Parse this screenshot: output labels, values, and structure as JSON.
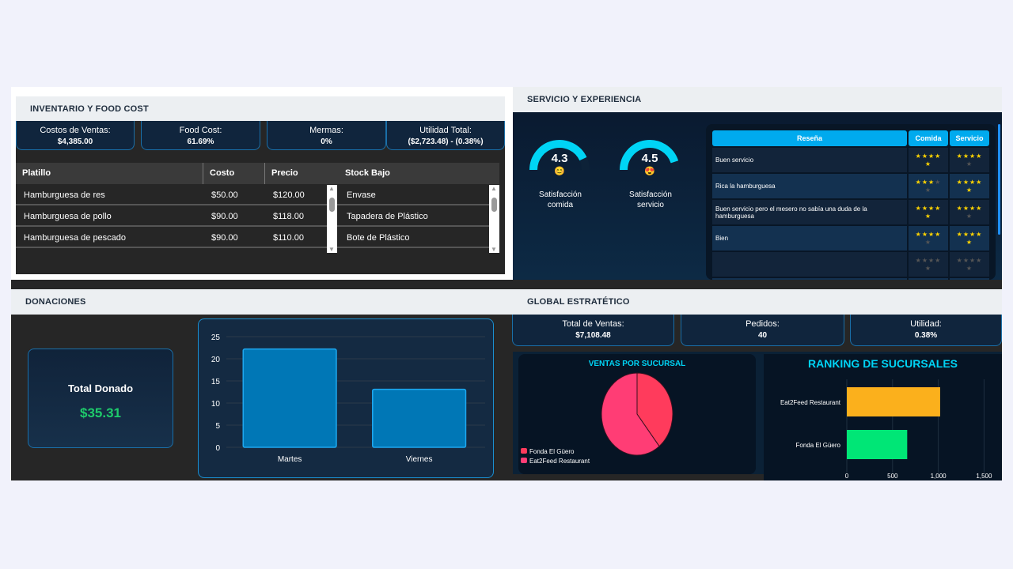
{
  "inventario": {
    "title": "INVENTARIO Y FOOD COST",
    "kpis": [
      {
        "label": "Costos de Ventas:",
        "value": "$4,385.00"
      },
      {
        "label": "Food Cost:",
        "value": "61.69%"
      },
      {
        "label": "Mermas:",
        "value": "0%"
      },
      {
        "label": "Utilidad Total:",
        "value": "($2,723.48) - (0.38%)"
      }
    ],
    "columns": [
      "Platillo",
      "Costo",
      "Precio",
      "Stock Bajo"
    ],
    "rows": [
      {
        "platillo": "Hamburguesa de res",
        "costo": "$50.00",
        "precio": "$120.00"
      },
      {
        "platillo": "Hamburguesa de pollo",
        "costo": "$90.00",
        "precio": "$118.00"
      },
      {
        "platillo": "Hamburguesa de pescado",
        "costo": "$90.00",
        "precio": "$110.00"
      }
    ],
    "stock_bajo": [
      "Envase",
      "Tapadera de Plástico",
      "Bote de Plástico"
    ]
  },
  "servicio": {
    "title": "SERVICIO Y EXPERIENCIA",
    "gauges": [
      {
        "value": "4.3",
        "max": 5,
        "emoji": "😊",
        "label1": "Satisfacción",
        "label2": "comida",
        "color": "#00d4f5"
      },
      {
        "value": "4.5",
        "max": 5,
        "emoji": "😍",
        "label1": "Satisfacción",
        "label2": "servicio",
        "color": "#00d4f5"
      }
    ],
    "columns": [
      "Reseña",
      "Comida",
      "Servicio"
    ],
    "reviews": [
      {
        "text": "Buen servicio",
        "comida": 5,
        "servicio": 4
      },
      {
        "text": "Rica la hamburguesa",
        "comida": 3,
        "servicio": 5
      },
      {
        "text": "Buen servicio pero el mesero no sabía una duda de la hamburguesa",
        "comida": 5,
        "servicio": 4
      },
      {
        "text": "Bien",
        "comida": 4,
        "servicio": 5
      },
      {
        "text": "",
        "comida": 0,
        "servicio": 0
      },
      {
        "text": "",
        "comida": 0,
        "servicio": 0
      }
    ]
  },
  "donaciones": {
    "title": "DONACIONES",
    "total_label": "Total Donado",
    "total_value": "$35.31"
  },
  "global": {
    "title": "GLOBAL ESTRATÉTICO",
    "kpis": [
      {
        "label": "Total de Ventas:",
        "value": "$7,108.48"
      },
      {
        "label": "Pedidos:",
        "value": "40"
      },
      {
        "label": "Utilidad:",
        "value": "0.38%"
      }
    ]
  },
  "chart_data": [
    {
      "type": "bar",
      "categories": [
        "Martes",
        "Viernes"
      ],
      "values": [
        22.2,
        13.11
      ],
      "ylim": [
        0,
        25
      ],
      "yticks": [
        0,
        5,
        10,
        15,
        20,
        25
      ],
      "grid": true,
      "color": "#0077b6"
    },
    {
      "type": "pie",
      "title": "VENTAS POR SUCURSAL",
      "categories": [
        "Fonda El Güero",
        "Eat2Feed Restaurant"
      ],
      "values": [
        39.3,
        60.7
      ],
      "colors": [
        "#ff3b5c",
        "#ff3d75"
      ],
      "legend": "bottom-left"
    },
    {
      "type": "bar",
      "orientation": "horizontal",
      "title": "RANKING DE SUCURSALES",
      "categories": [
        "Eat2Feed Restaurant",
        "Fonda El Güero"
      ],
      "values": [
        1020,
        660
      ],
      "colors": [
        "#fbb01c",
        "#00e676"
      ],
      "xlim": [
        0,
        1600
      ],
      "xticks": [
        "0",
        "500",
        "1,000",
        "1,500"
      ],
      "grid": true
    }
  ]
}
